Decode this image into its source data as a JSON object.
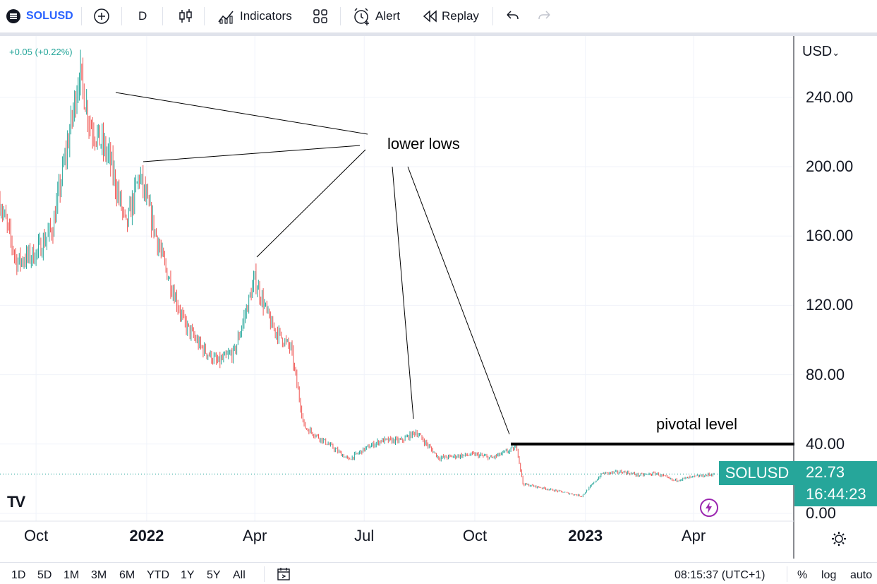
{
  "toolbar": {
    "symbol": "SOLUSD",
    "interval": "D",
    "indicators_label": "Indicators",
    "alert_label": "Alert",
    "replay_label": "Replay",
    "icons": [
      "coin-logo-icon",
      "add-symbol-icon",
      "candles-icon",
      "indicators-icon",
      "layout-grid-icon",
      "alert-clock-icon",
      "replay-icon",
      "undo-icon",
      "redo-icon"
    ]
  },
  "legend": {
    "change": "+0.05 (+0.22%)"
  },
  "price_scale": {
    "currency": "USD",
    "symbol_tag": "SOLUSD",
    "last_price": "22.73",
    "countdown": "16:44:23"
  },
  "chart_data": {
    "type": "candlestick",
    "symbol": "SOLUSD",
    "interval": "1D",
    "x_ticks": [
      "Oct",
      "2022",
      "Apr",
      "Jul",
      "Oct",
      "2023",
      "Apr"
    ],
    "y_ticks": [
      "240.00",
      "200.00",
      "160.00",
      "120.00",
      "80.00",
      "40.00",
      "0.00"
    ],
    "ylim": [
      0,
      280
    ],
    "grid": true,
    "series": [
      {
        "x": [
          "2021-09-01",
          "2021-09-15",
          "2021-10-01",
          "2021-10-15",
          "2021-11-01",
          "2021-11-06",
          "2021-11-15",
          "2021-12-01",
          "2021-12-15",
          "2021-12-26",
          "2022-01-15",
          "2022-02-01",
          "2022-02-15",
          "2022-03-01",
          "2022-03-15",
          "2022-04-01",
          "2022-04-15",
          "2022-05-01",
          "2022-05-12",
          "2022-06-01",
          "2022-06-18",
          "2022-07-01",
          "2022-07-15",
          "2022-08-01",
          "2022-08-13",
          "2022-09-01",
          "2022-09-15",
          "2022-10-01",
          "2022-10-15",
          "2022-11-05",
          "2022-11-10",
          "2022-12-01",
          "2022-12-29",
          "2023-01-15",
          "2023-02-01",
          "2023-02-15",
          "2023-03-01",
          "2023-03-15",
          "2023-04-01",
          "2023-04-18"
        ],
        "values": [
          180,
          145,
          150,
          165,
          232,
          255,
          225,
          205,
          165,
          195,
          145,
          110,
          96,
          87,
          93,
          135,
          108,
          95,
          50,
          40,
          31,
          37,
          42,
          42,
          47,
          32,
          33,
          34,
          32,
          38,
          17,
          14,
          10,
          23,
          24,
          22,
          23,
          19,
          21,
          22.7
        ]
      }
    ],
    "annotations": [
      {
        "text": "lower lows"
      },
      {
        "text": "pivotal level",
        "price": 40
      }
    ]
  },
  "time_scale": {
    "clock": "08:15:37 (UTC+1)",
    "percent": "%",
    "log": "log",
    "auto": "auto"
  },
  "ranges": [
    "1D",
    "5D",
    "1M",
    "3M",
    "6M",
    "YTD",
    "1Y",
    "5Y",
    "All"
  ],
  "logo": "TV"
}
